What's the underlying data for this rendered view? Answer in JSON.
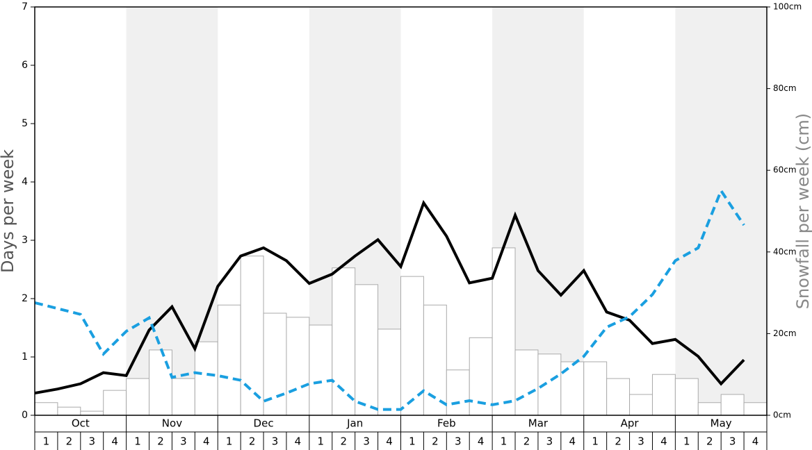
{
  "chart_data": {
    "type": "bar-line",
    "y_label": "Days per week",
    "y2_label": "Snowfall per week (cm)",
    "months": [
      "Oct",
      "Nov",
      "Dec",
      "Jan",
      "Feb",
      "Mar",
      "Apr",
      "May"
    ],
    "categories": [
      "1",
      "2",
      "3",
      "4",
      "1",
      "2",
      "3",
      "4",
      "1",
      "2",
      "3",
      "4",
      "1",
      "2",
      "3",
      "4",
      "1",
      "2",
      "3",
      "4",
      "1",
      "2",
      "3",
      "4",
      "1",
      "2",
      "3",
      "4",
      "1",
      "2",
      "3",
      "4"
    ],
    "ylim": [
      0,
      7
    ],
    "yticks": [
      0,
      1,
      2,
      3,
      4,
      5,
      6,
      7
    ],
    "y2lim": [
      0,
      100
    ],
    "y2ticks": [
      {
        "value": 0,
        "label": "0cm"
      },
      {
        "value": 20,
        "label": "20cm"
      },
      {
        "value": 40,
        "label": "40cm"
      },
      {
        "value": 60,
        "label": "60cm"
      },
      {
        "value": 80,
        "label": "80cm"
      },
      {
        "value": 100,
        "label": "100cm"
      }
    ],
    "series": [
      {
        "kind": "bar",
        "axis": "y2",
        "color": "#ffffff",
        "stroke": "#aaaaaa",
        "values": [
          3.1,
          2.0,
          1.0,
          6.1,
          9.0,
          16.0,
          9.0,
          18.0,
          27.0,
          39.0,
          25.0,
          24.0,
          22.1,
          36.1,
          32.0,
          21.1,
          34.0,
          27.0,
          11.1,
          19.0,
          41.0,
          16.0,
          15.0,
          13.1,
          13.1,
          9.0,
          5.1,
          10.0,
          9.0,
          3.1,
          5.1,
          3.1
        ]
      },
      {
        "kind": "line",
        "color": "#000000",
        "values": [
          0.38,
          0.45,
          0.54,
          0.73,
          0.68,
          1.46,
          1.86,
          1.14,
          2.21,
          2.73,
          2.87,
          2.65,
          2.26,
          2.42,
          2.73,
          3.01,
          2.55,
          3.64,
          3.07,
          2.27,
          2.35,
          3.43,
          2.48,
          2.06,
          2.48,
          1.77,
          1.63,
          1.23,
          1.3,
          1.01,
          0.54,
          0.95
        ]
      },
      {
        "kind": "dashed",
        "color": "#1a9fe0",
        "values": [
          1.93,
          1.83,
          1.73,
          1.05,
          1.44,
          1.67,
          0.65,
          0.73,
          0.68,
          0.6,
          0.24,
          0.38,
          0.54,
          0.6,
          0.24,
          0.1,
          0.1,
          0.42,
          0.18,
          0.25,
          0.18,
          0.25,
          0.46,
          0.71,
          1.01,
          1.51,
          1.69,
          2.07,
          2.65,
          2.87,
          3.85,
          3.26
        ]
      }
    ]
  }
}
